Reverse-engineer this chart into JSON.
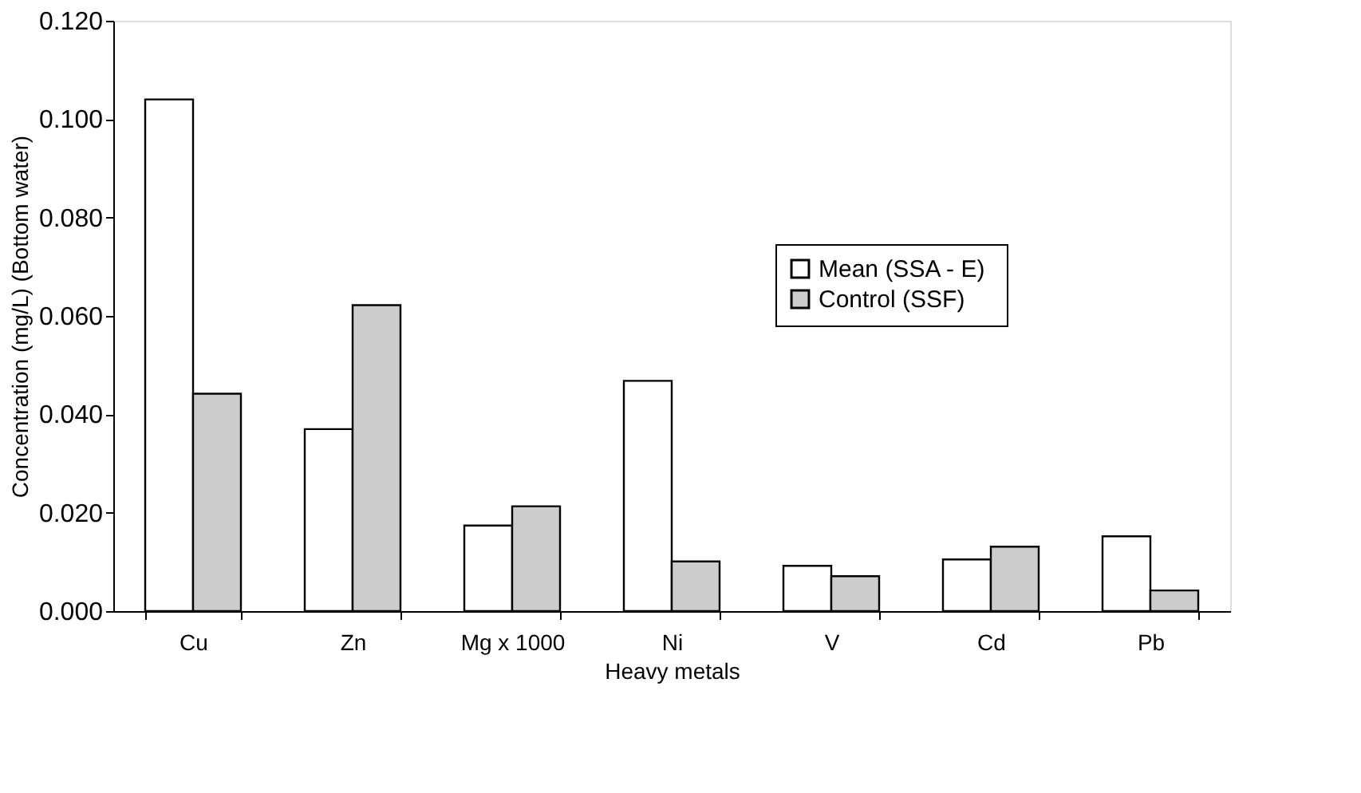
{
  "chart_data": {
    "type": "bar",
    "xlabel": "Heavy metals",
    "ylabel": "Concentration (mg/L) (Bottom water)",
    "categories": [
      "Cu",
      "Zn",
      "Mg x 1000",
      "Ni",
      "V",
      "Cd",
      "Pb"
    ],
    "series": [
      {
        "name": "Mean  (SSA - E)",
        "color": "#ffffff",
        "values": [
          0.104,
          0.037,
          0.0174,
          0.0468,
          0.0092,
          0.0105,
          0.0152
        ]
      },
      {
        "name": "Control (SSF)",
        "color": "#cccccc",
        "values": [
          0.0442,
          0.0622,
          0.0213,
          0.0101,
          0.0071,
          0.0131,
          0.0042
        ]
      }
    ],
    "ylim": [
      0,
      0.12
    ],
    "yticks": [
      {
        "value": 0,
        "label": "0.000"
      },
      {
        "value": 0.02,
        "label": "0.020"
      },
      {
        "value": 0.04,
        "label": "0.040"
      },
      {
        "value": 0.06,
        "label": "0.060"
      },
      {
        "value": 0.08,
        "label": "0.080"
      },
      {
        "value": 0.1,
        "label": "0.100"
      },
      {
        "value": 0.12,
        "label": "0.120"
      }
    ],
    "grid": false,
    "legend": "top right"
  }
}
